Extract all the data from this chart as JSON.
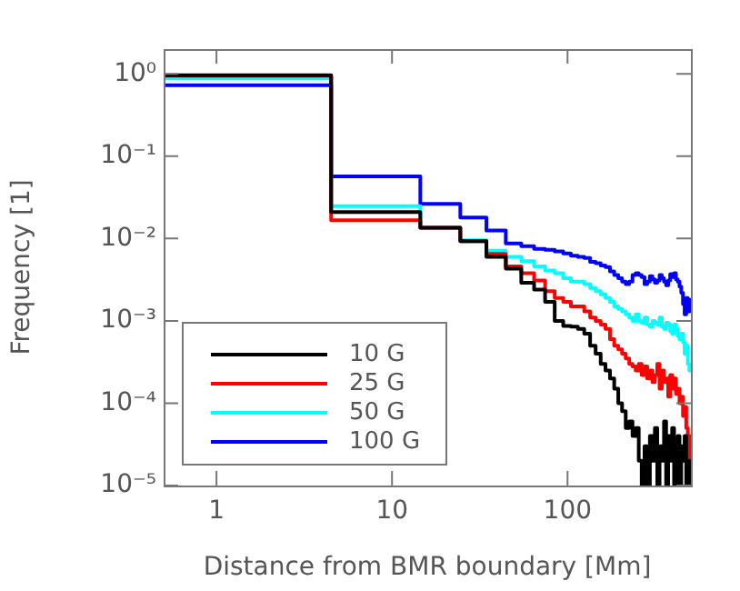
{
  "chart_data": {
    "type": "histogram",
    "xlabel": "Distance from BMR boundary [Mm]",
    "ylabel": "Frequency [1]",
    "log": "xy",
    "grid": false,
    "legend": "bottom left",
    "bins": [
      0.5,
      4.5,
      14.5,
      24.5,
      34.5,
      44.5,
      54.5,
      64.5,
      74.5,
      84.5,
      94.5,
      104.5,
      114.5,
      124.5,
      134.5,
      144.5,
      154.5,
      164.5,
      174.5,
      184.5,
      194.5,
      204.5,
      214.5,
      224.5,
      234.5,
      244.5,
      254.5,
      264.5,
      274.5,
      284.5,
      294.5,
      304.5,
      314.5,
      324.5,
      334.5,
      344.5,
      354.5,
      364.5,
      374.5,
      384.5,
      394.5,
      404.5,
      414.5,
      424.5,
      434.5,
      444.5,
      454.5,
      464.5,
      474.5,
      484.5,
      494.5,
      504.5
    ],
    "xlim": [
      0.5,
      504.5
    ],
    "xticks": [
      1,
      10,
      100
    ],
    "ylim": [
      1e-05,
      2
    ],
    "yticks": [
      {
        "value": 1e-05,
        "label": "10⁻⁵"
      },
      {
        "value": 0.0001,
        "label": "10⁻⁴"
      },
      {
        "value": 0.001,
        "label": "10⁻³"
      },
      {
        "value": 0.01,
        "label": "10⁻²"
      },
      {
        "value": 0.1,
        "label": "10⁻¹"
      },
      {
        "value": 1,
        "label": "10⁰"
      }
    ],
    "series": [
      {
        "name": "10 G",
        "color": "#000000",
        "values": [
          0.96,
          0.021,
          0.0135,
          0.0093,
          0.006,
          0.0043,
          0.0029,
          0.0024,
          0.0017,
          0.001,
          0.00087,
          0.00085,
          0.0008,
          0.0007,
          0.0005,
          0.0004,
          0.0003,
          0.00025,
          0.0002,
          0.00015,
          0.0001,
          8e-05,
          5e-05,
          6e-05,
          4e-05,
          5e-05,
          2e-05,
          1e-05,
          3e-05,
          1e-05,
          4e-05,
          2e-05,
          5e-05,
          1e-05,
          3e-05,
          2e-05,
          6e-05,
          1e-05,
          4e-05,
          2e-05,
          5e-05,
          1e-05,
          3e-05,
          4e-05,
          1e-05,
          3e-05,
          2e-05,
          4e-05,
          1e-05,
          2e-05,
          1e-05
        ]
      },
      {
        "name": "25 G",
        "color": "#ff0000",
        "values": [
          0.95,
          0.0167,
          0.0135,
          0.0093,
          0.0065,
          0.0046,
          0.0038,
          0.0031,
          0.0023,
          0.0019,
          0.0017,
          0.0015,
          0.0015,
          0.0013,
          0.0011,
          0.001,
          0.0009,
          0.0008,
          0.0006,
          0.0005,
          0.00045,
          0.0004,
          0.00035,
          0.0003,
          0.00028,
          0.00025,
          0.0003,
          0.00022,
          0.00028,
          0.0002,
          0.00025,
          0.00018,
          0.00022,
          0.0003,
          0.00015,
          0.00025,
          0.00018,
          0.0002,
          0.00012,
          0.00022,
          0.00015,
          0.0002,
          0.00013,
          0.00015,
          0.0001,
          0.00012,
          7e-05,
          9e-05,
          5e-05,
          4e-05,
          2e-05
        ]
      },
      {
        "name": "50 G",
        "color": "#00ffff",
        "values": [
          0.88,
          0.0247,
          0.0136,
          0.0095,
          0.0071,
          0.006,
          0.0053,
          0.0046,
          0.0041,
          0.0038,
          0.0033,
          0.003,
          0.003,
          0.0028,
          0.0025,
          0.0023,
          0.0021,
          0.0019,
          0.0017,
          0.0015,
          0.0014,
          0.0013,
          0.0012,
          0.0011,
          0.001,
          0.0012,
          0.001,
          0.00095,
          0.0011,
          0.0009,
          0.00085,
          0.001,
          0.00095,
          0.0009,
          0.0011,
          0.00085,
          0.0008,
          0.00095,
          0.0009,
          0.00075,
          0.0007,
          0.0009,
          0.0008,
          0.00065,
          0.0006,
          0.0007,
          0.00055,
          0.0004,
          0.0005,
          0.0003,
          0.00025
        ]
      },
      {
        "name": "100 G",
        "color": "#0000ff",
        "values": [
          0.73,
          0.057,
          0.0264,
          0.018,
          0.0125,
          0.0087,
          0.0081,
          0.0075,
          0.0073,
          0.007,
          0.0066,
          0.0062,
          0.006,
          0.0058,
          0.0052,
          0.005,
          0.0047,
          0.0045,
          0.004,
          0.0036,
          0.0033,
          0.003,
          0.0028,
          0.003,
          0.0036,
          0.0038,
          0.0036,
          0.0034,
          0.0028,
          0.003,
          0.0035,
          0.0032,
          0.0029,
          0.0031,
          0.0036,
          0.0033,
          0.003,
          0.0027,
          0.0031,
          0.0037,
          0.0034,
          0.0038,
          0.0032,
          0.003,
          0.0026,
          0.0022,
          0.0016,
          0.0012,
          0.0019,
          0.0013,
          0.0018
        ]
      }
    ]
  }
}
